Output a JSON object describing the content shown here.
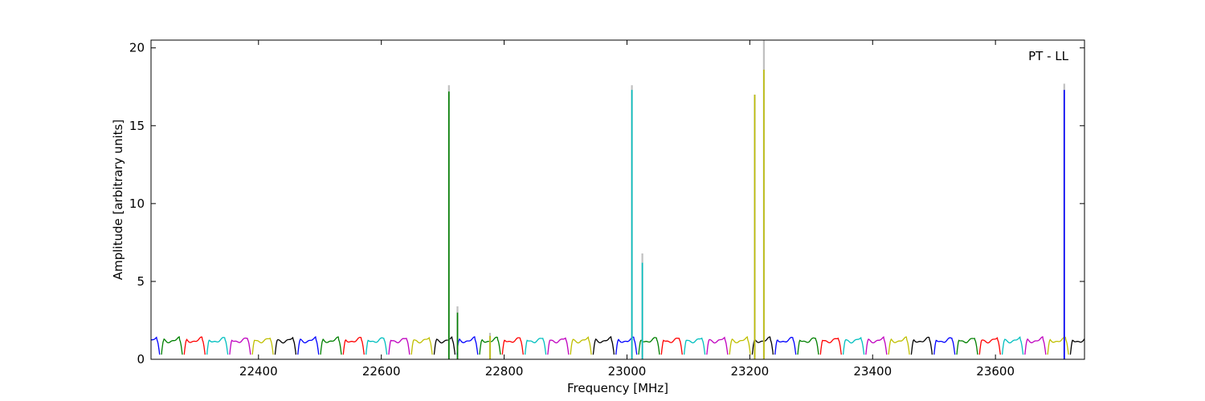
{
  "chart_data": {
    "type": "line",
    "title": "",
    "xlabel": "Frequency [MHz]",
    "ylabel": "Amplitude [arbitrary units]",
    "xlim": [
      22225,
      23745
    ],
    "ylim": [
      0,
      20.5
    ],
    "xticks": [
      22400,
      22600,
      22800,
      23000,
      23200,
      23400,
      23600
    ],
    "yticks": [
      0,
      5,
      10,
      15,
      20
    ],
    "legend": {
      "text": "PT - LL",
      "position": "top-right"
    },
    "grid": false,
    "baseline": {
      "low": 0.3,
      "high": 1.25,
      "segment_width_mhz": 34,
      "gap_mhz": 3
    },
    "colors": [
      "#0000ff",
      "#008000",
      "#ff0000",
      "#00bfbf",
      "#bf00bf",
      "#bfbf00",
      "#000000"
    ],
    "spike_shadow_color": "#c0c0c0",
    "spikes": [
      {
        "x": 22710,
        "y": 17.2,
        "shadow": 17.6,
        "color": "#008000"
      },
      {
        "x": 22724,
        "y": 3.0,
        "shadow": 3.4,
        "color": "#008000"
      },
      {
        "x": 22777,
        "y": 1.5,
        "shadow": 1.7,
        "color": "#bfbf00"
      },
      {
        "x": 23008,
        "y": 17.3,
        "shadow": 17.6,
        "color": "#00bfbf"
      },
      {
        "x": 23025,
        "y": 6.2,
        "shadow": 6.8,
        "color": "#00bfbf"
      },
      {
        "x": 23208,
        "y": 17.0,
        "shadow": 17.0,
        "color": "#bfbf00"
      },
      {
        "x": 23223,
        "y": 18.6,
        "shadow": 20.5,
        "color": "#bfbf00"
      },
      {
        "x": 23712,
        "y": 17.3,
        "shadow": 17.7,
        "color": "#0000ff"
      }
    ]
  }
}
